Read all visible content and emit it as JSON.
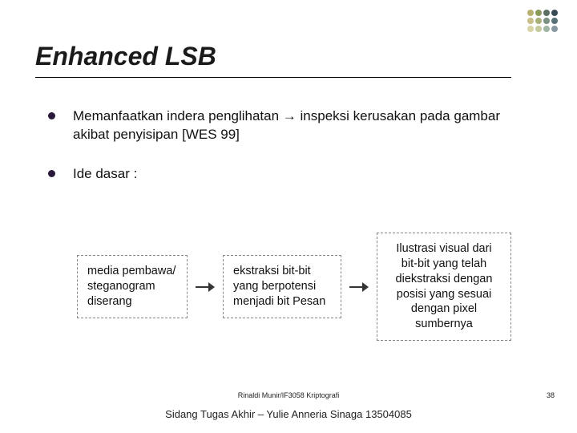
{
  "title": "Enhanced LSB",
  "bullets": {
    "b1_pre": "Memanfaatkan indera penglihatan ",
    "b1_arrow": "→",
    "b1_post": " inspeksi kerusakan pada gambar akibat penyisipan [WES 99]",
    "b2": "Ide dasar :"
  },
  "flow": {
    "box1": "media pembawa/ steganogram diserang",
    "box2": "ekstraksi bit-bit yang berpotensi menjadi bit Pesan",
    "box3": "Ilustrasi visual dari bit-bit yang telah diekstraksi dengan posisi yang sesuai dengan pixel sumbernya"
  },
  "footer": {
    "line1": "Rinaldi Munir/IF3058 Kriptografi",
    "line2": "Sidang Tugas Akhir – Yulie Anneria Sinaga 13504085",
    "page": "38"
  },
  "deco_colors": {
    "c1": [
      "#b8b070",
      "#c8c088",
      "#d8d4a8"
    ],
    "c2": [
      "#8a9a58",
      "#a8b078",
      "#c4ca9c"
    ],
    "c3": [
      "#5a7060",
      "#7a9080",
      "#a0b4a4"
    ],
    "c4": [
      "#384a54",
      "#587078",
      "#8898a0"
    ]
  }
}
